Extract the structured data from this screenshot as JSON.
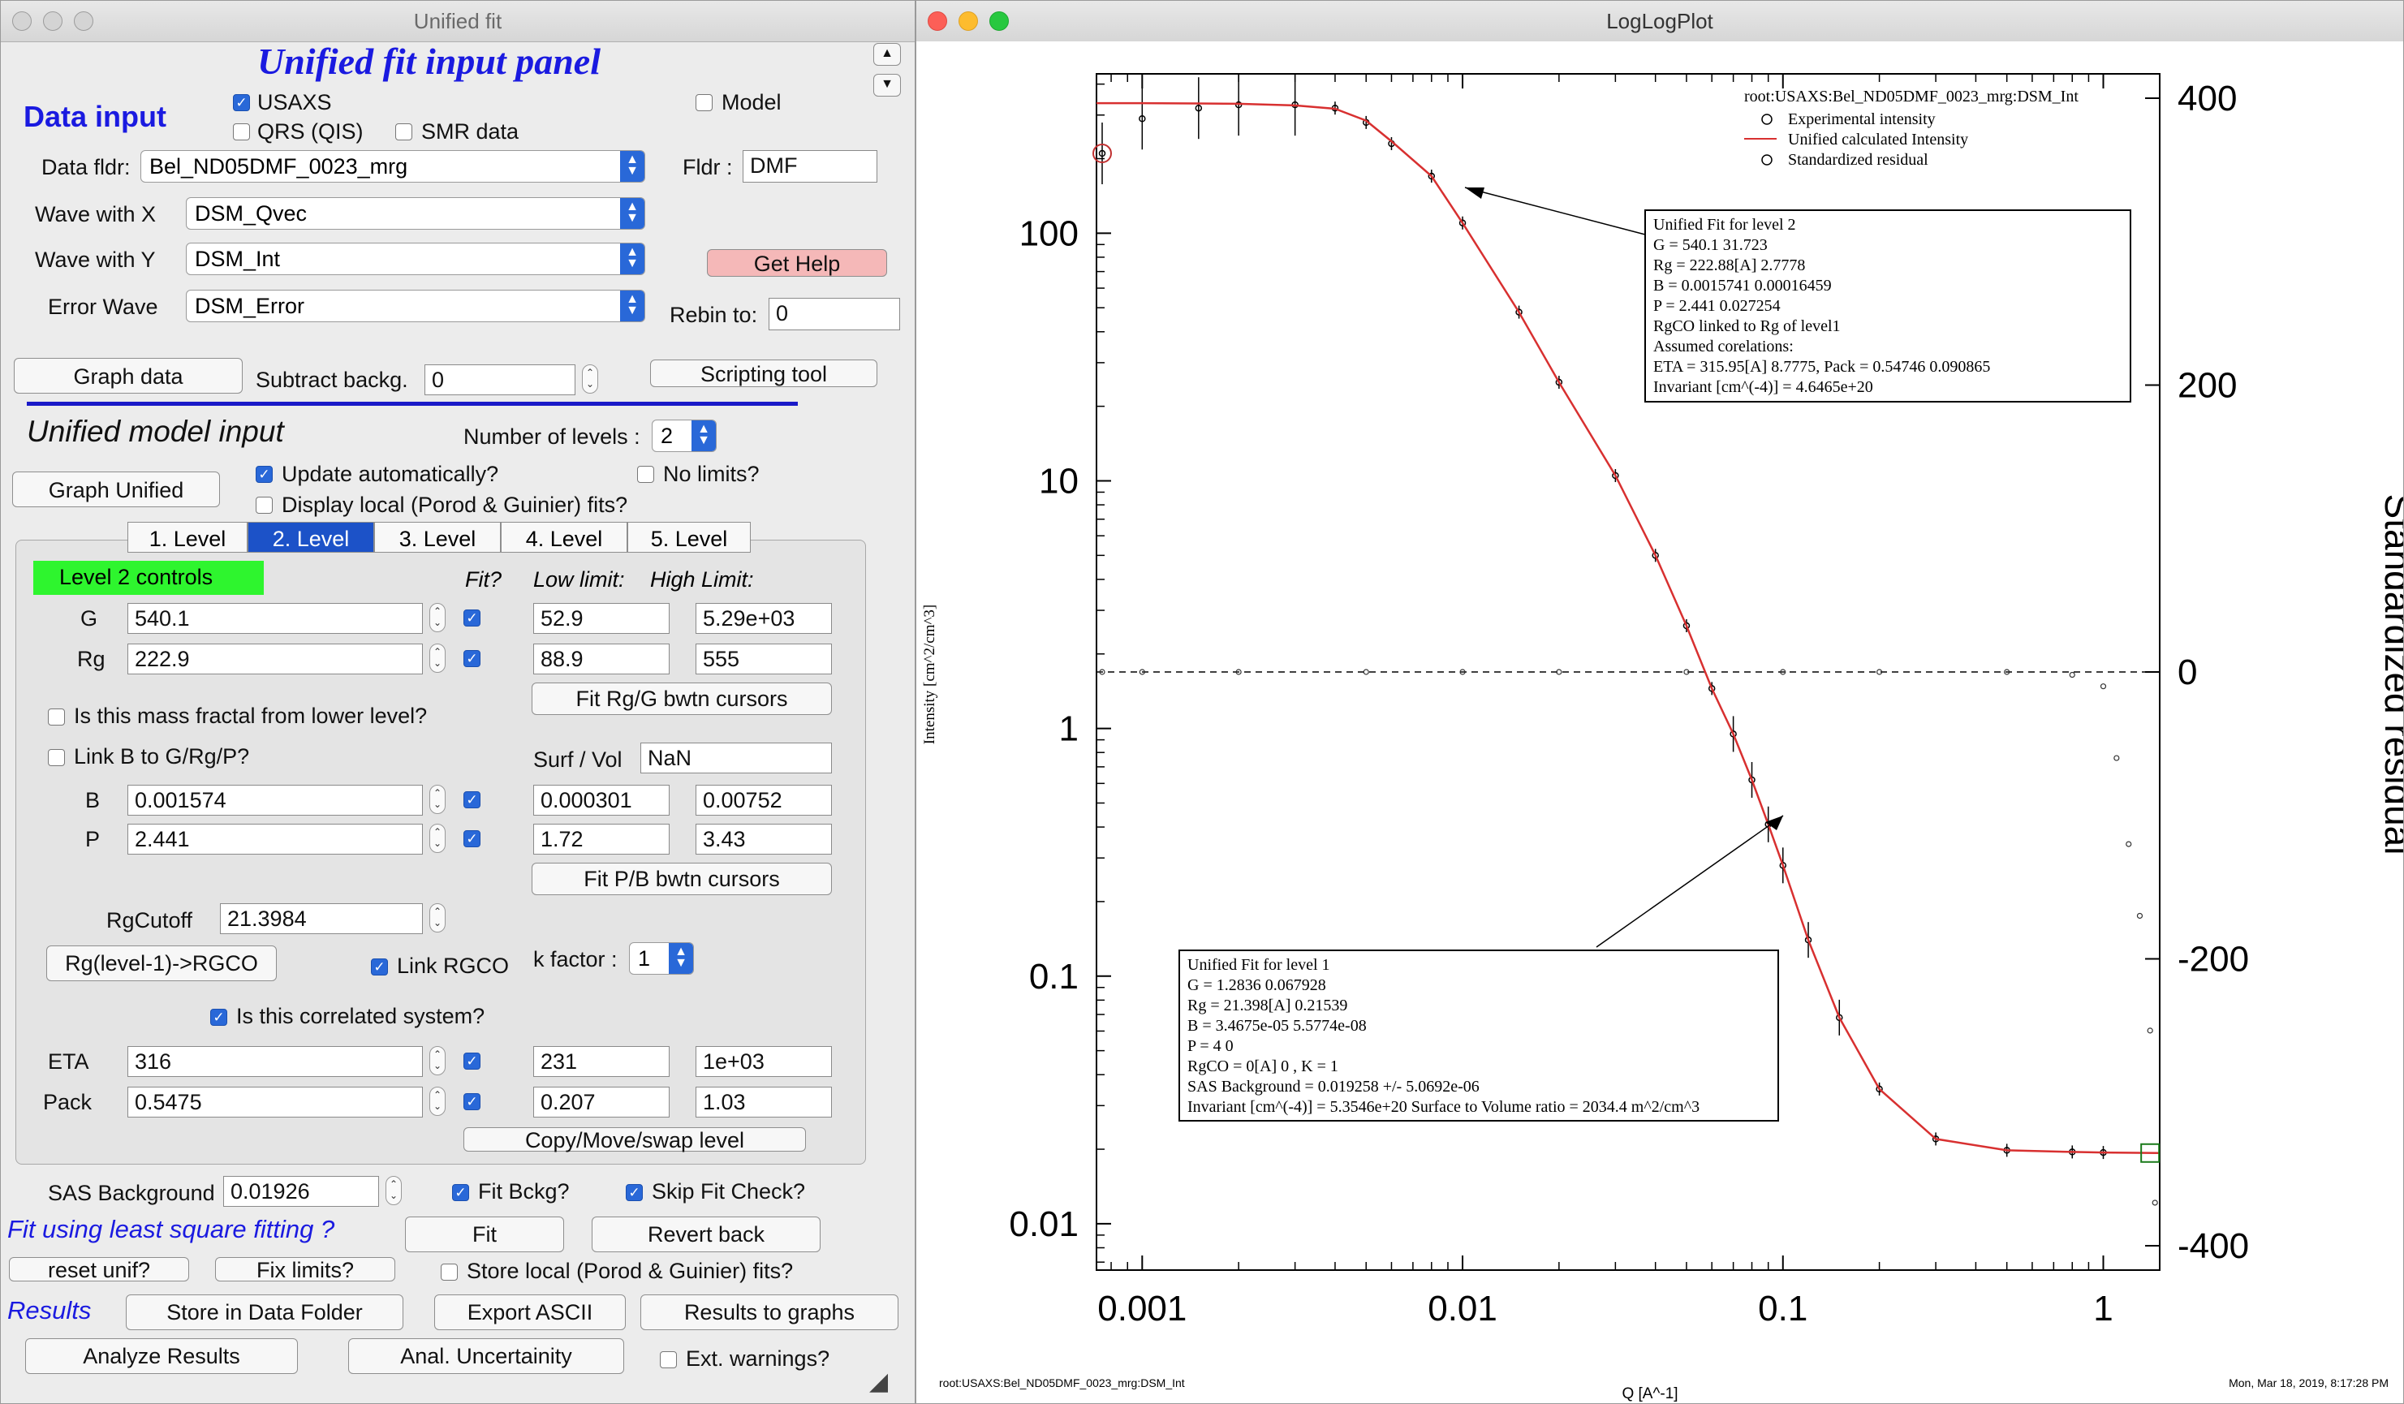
{
  "left_window": {
    "title": "Unified fit",
    "panel_title": "Unified fit input panel",
    "data_input_label": "Data input",
    "usaxs_label": "USAXS",
    "qrs_label": "QRS (QIS)",
    "smr_label": "SMR data",
    "model_label": "Model",
    "data_fldr_label": "Data fldr:",
    "data_fldr_value": "Bel_ND05DMF_0023_mrg",
    "fldr_label": "Fldr :",
    "fldr_value": "DMF",
    "wave_x_label": "Wave with X",
    "wave_x_value": "DSM_Qvec",
    "wave_y_label": "Wave with Y",
    "wave_y_value": "DSM_Int",
    "error_wave_label": "Error Wave",
    "error_wave_value": "DSM_Error",
    "get_help_label": "Get Help",
    "rebin_label": "Rebin to:",
    "rebin_value": "0",
    "graph_data_label": "Graph data",
    "subtract_backg_label": "Subtract backg.",
    "subtract_backg_value": "0",
    "scripting_tool_label": "Scripting tool",
    "unified_model_input_label": "Unified model input",
    "num_levels_label": "Number of levels :",
    "num_levels_value": "2",
    "graph_unified_label": "Graph Unified",
    "update_auto_label": "Update automatically?",
    "no_limits_label": "No limits?",
    "display_local_label": "Display local (Porod & Guinier) fits?",
    "tabs": [
      "1. Level",
      "2. Level",
      "3. Level",
      "4. Level",
      "5. Level"
    ],
    "level_controls_label": "Level  2 controls",
    "fit_col_label": "Fit?",
    "low_limit_label": "Low limit:",
    "high_limit_label": "High Limit:",
    "g_label": "G",
    "g_value": "540.1",
    "g_low": "52.9",
    "g_high": "5.29e+03",
    "rg_label": "Rg",
    "rg_value": "222.9",
    "rg_low": "88.9",
    "rg_high": "555",
    "fit_rg_g_label": "Fit Rg/G bwtn cursors",
    "mass_fractal_label": "Is this mass fractal from lower level?",
    "link_b_label": "Link B to G/Rg/P?",
    "surf_vol_label": "Surf / Vol",
    "surf_vol_value": "NaN",
    "b_label": "B",
    "b_value": "0.001574",
    "b_low": "0.000301",
    "b_high": "0.00752",
    "p_label": "P",
    "p_value": "2.441",
    "p_low": "1.72",
    "p_high": "3.43",
    "fit_p_b_label": "Fit P/B bwtn cursors",
    "rgcutoff_label": "RgCutoff",
    "rgcutoff_value": "21.3984",
    "rg_level_label": "Rg(level-1)->RGCO",
    "link_rgco_label": "Link RGCO",
    "k_factor_label": "k factor :",
    "k_factor_value": "1",
    "correlated_label": "Is this correlated system?",
    "eta_label": "ETA",
    "eta_value": "316",
    "eta_low": "231",
    "eta_high": "1e+03",
    "pack_label": "Pack",
    "pack_value": "0.5475",
    "pack_low": "0.207",
    "pack_high": "1.03",
    "copy_move_label": "Copy/Move/swap level",
    "sas_bg_label": "SAS Background",
    "sas_bg_value": "0.01926",
    "fit_bckg_label": "Fit Bckg?",
    "skip_fit_check_label": "Skip Fit Check?",
    "fit_lsq_label": "Fit using least square fitting ?",
    "fit_label": "Fit",
    "revert_back_label": "Revert back",
    "reset_unif_label": "reset unif?",
    "fix_limits_label": "Fix limits?",
    "store_local_label": "Store local (Porod & Guinier) fits?",
    "results_label": "Results",
    "store_df_label": "Store in Data Folder",
    "export_ascii_label": "Export ASCII",
    "results_graphs_label": "Results to graphs",
    "analyze_results_label": "Analyze Results",
    "anal_uncert_label": "Anal. Uncertainity",
    "ext_warnings_label": "Ext. warnings?"
  },
  "plot_window": {
    "title": "LogLogPlot",
    "legend_title": "root:USAXS:Bel_ND05DMF_0023_mrg:DSM_Int",
    "legend_items": [
      "Experimental intensity",
      "Unified calculated Intensity",
      "Standardized residual"
    ],
    "level2_box": [
      "Unified Fit for level 2",
      "G = 540.1          31.723",
      "Rg = 222.88[A]             2.7778",
      "B = 0.0015741   0.00016459",
      "P = 2.441            0.027254",
      "RgCO linked to Rg of level1",
      "Assumed corelations:",
      "ETA = 315.95[A]            8.7775, Pack = 0.54746                0.090865",
      "Invariant [cm^(-4)] = 4.6465e+20"
    ],
    "level1_box": [
      "Unified Fit for level 1",
      "G = 1.2836         0.067928",
      "Rg = 21.398[A]             0.21539",
      "B = 3.4675e-05             5.5774e-08",
      "P = 4      0",
      "RgCO = 0[A]    0 , K = 1",
      "SAS Background = 0.019258    +/-    5.0692e-06",
      "Invariant [cm^(-4)] = 5.3546e+20      Surface to Volume ratio = 2034.4  m^2/cm^3"
    ],
    "footer_left": "root:USAXS:Bel_ND05DMF_0023_mrg:DSM_Int",
    "footer_right": "Mon, Mar 18, 2019, 8:17:28 PM",
    "colors": {
      "fit_line": "#d83030",
      "data": "#000000",
      "box": "#000000"
    }
  },
  "chart_data": {
    "type": "line",
    "xscale": "log",
    "yscale": "log",
    "xlim": [
      0.00072,
      1.5
    ],
    "ylim": [
      0.0065,
      440
    ],
    "y2lim": [
      -400,
      400
    ],
    "xlabel": "Q [A^-1]",
    "ylabel": "Intensity [cm^2/cm^3]",
    "y2label": "Standardized residual",
    "x_ticks": [
      "0.001",
      "0.01",
      "0.1",
      "1"
    ],
    "y_ticks": [
      "0.01",
      "0.1",
      "1",
      "10",
      "100"
    ],
    "y2_ticks": [
      "-400",
      "-200",
      "0",
      "200",
      "400"
    ],
    "grid": false,
    "legend": "top-right",
    "series": [
      {
        "name": "Experimental intensity",
        "x": [
          0.00075,
          0.001,
          0.0015,
          0.002,
          0.003,
          0.004,
          0.005,
          0.006,
          0.008,
          0.01,
          0.015,
          0.02,
          0.03,
          0.04,
          0.05,
          0.06,
          0.07,
          0.08,
          0.09,
          0.1,
          0.12,
          0.15,
          0.2,
          0.3,
          0.5,
          0.8,
          1.0
        ],
        "y": [
          210,
          290,
          320,
          330,
          330,
          320,
          280,
          230,
          170,
          110,
          48,
          25,
          10.5,
          5.0,
          2.6,
          1.45,
          0.95,
          0.62,
          0.41,
          0.28,
          0.14,
          0.068,
          0.035,
          0.022,
          0.0198,
          0.0195,
          0.0194
        ]
      },
      {
        "name": "Unified calculated Intensity",
        "x": [
          0.00072,
          0.001,
          0.0015,
          0.002,
          0.003,
          0.004,
          0.005,
          0.006,
          0.008,
          0.01,
          0.015,
          0.02,
          0.03,
          0.04,
          0.05,
          0.06,
          0.07,
          0.08,
          0.09,
          0.1,
          0.12,
          0.15,
          0.2,
          0.3,
          0.5,
          0.8,
          1.0,
          1.5
        ],
        "y": [
          335,
          335,
          334,
          333,
          328,
          318,
          285,
          235,
          170,
          110,
          48,
          25,
          10.5,
          5.0,
          2.6,
          1.45,
          0.95,
          0.62,
          0.41,
          0.28,
          0.14,
          0.068,
          0.035,
          0.022,
          0.0198,
          0.0195,
          0.0194,
          0.0193
        ]
      },
      {
        "name": "Standardized residual",
        "x": [
          0.00075,
          0.001,
          0.002,
          0.005,
          0.01,
          0.02,
          0.05,
          0.1,
          0.2,
          0.5,
          0.8,
          1.0,
          1.1,
          1.2,
          1.3,
          1.4,
          1.45
        ],
        "y": [
          0,
          0,
          0,
          0,
          0,
          0,
          0,
          0,
          0,
          0,
          -2,
          -10,
          -60,
          -120,
          -170,
          -250,
          -370
        ]
      }
    ]
  }
}
